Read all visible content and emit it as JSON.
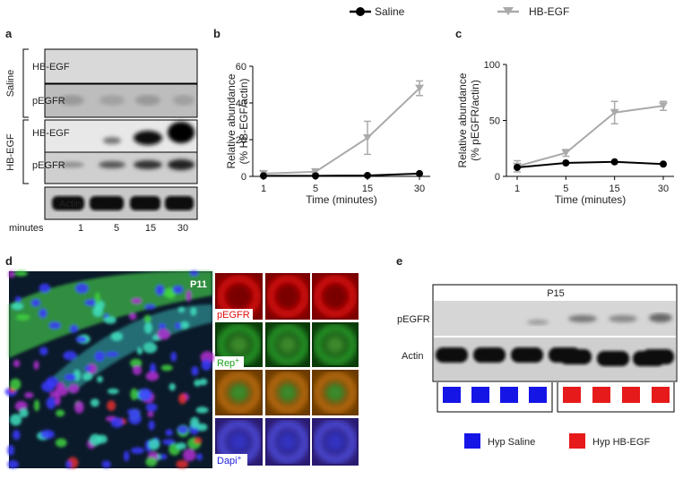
{
  "figure": {
    "panel_letters": [
      "a",
      "b",
      "c",
      "d",
      "e"
    ],
    "panel_a": {
      "groups": [
        "Saline",
        "HB-EGF"
      ],
      "rows": [
        "HB-EGF",
        "pEGFR",
        "HB-EGF",
        "pEGFR",
        "Actin"
      ],
      "x_label": "minutes",
      "lanes": [
        "1",
        "5",
        "15",
        "30"
      ]
    },
    "panel_d": {
      "tag": "P11",
      "stains": [
        {
          "text": "pEGFR"
        },
        {
          "text": "Rep",
          "sup": "+"
        },
        {
          "text": "Dapi",
          "sup": "+"
        }
      ]
    },
    "panel_e": {
      "tag": "P15",
      "rows": [
        "pEGFR",
        "Actin"
      ],
      "legend": [
        "Hyp Saline",
        "Hyp HB-EGF"
      ]
    }
  },
  "chart_data": [
    {
      "type": "line",
      "y_label": [
        "Relative abundance",
        "(% HB-EGF/actin)"
      ],
      "x_label": "Time (minutes)",
      "categories": [
        "1",
        "5",
        "15",
        "30"
      ],
      "ylim": [
        0,
        60
      ],
      "yticks": [
        0,
        20,
        40,
        60
      ],
      "series": [
        {
          "name": "Saline",
          "color": "#000000",
          "marker": "circle",
          "values": [
            0.3,
            0.3,
            0.5,
            1.5
          ]
        },
        {
          "name": "HB-EGF",
          "color": "#aaaaaa",
          "marker": "triangle-down",
          "values": [
            1.5,
            2.5,
            21,
            48
          ],
          "errors": [
            1.5,
            1,
            9,
            4
          ]
        }
      ]
    },
    {
      "type": "line",
      "y_label": [
        "Relative abundance",
        "(% pEGFR/actin)"
      ],
      "x_label": "Time (minutes)",
      "categories": [
        "1",
        "5",
        "15",
        "30"
      ],
      "ylim": [
        0,
        100
      ],
      "yticks": [
        0,
        50,
        100
      ],
      "series": [
        {
          "name": "Saline",
          "color": "#000000",
          "marker": "circle",
          "values": [
            8,
            12,
            13,
            11
          ]
        },
        {
          "name": "HB-EGF",
          "color": "#aaaaaa",
          "marker": "triangle-down",
          "values": [
            9,
            21,
            57,
            63
          ],
          "errors": [
            5,
            3,
            10,
            4
          ]
        }
      ]
    }
  ]
}
